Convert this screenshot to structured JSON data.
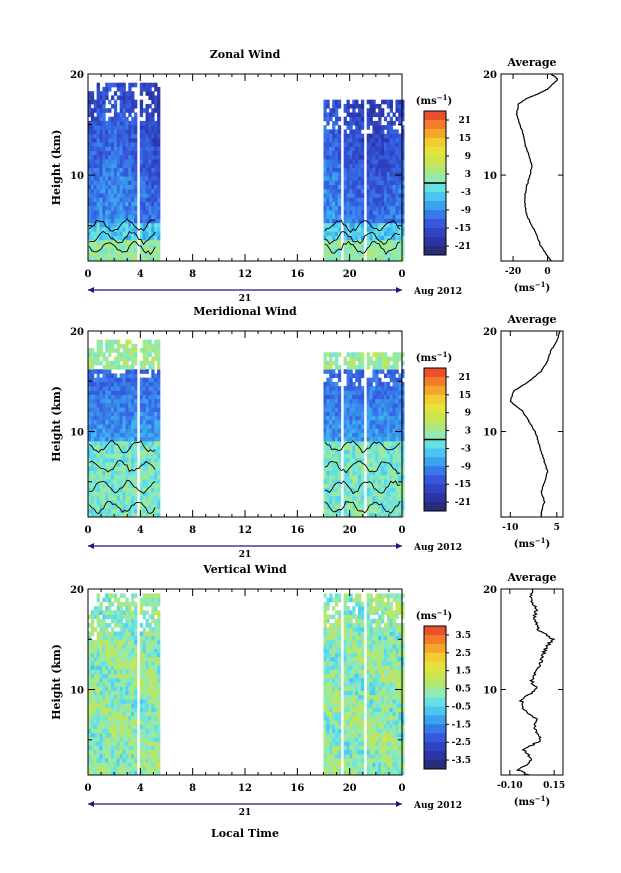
{
  "figure": {
    "date_label": "Aug 2012",
    "day_label": "21",
    "x_axis_title": "Local Time",
    "y_axis_title": "Height (km)",
    "average_title": "Average",
    "unit_label": "(ms⁻¹)",
    "unit_base": "(ms",
    "unit_exp": "−1",
    "unit_close": ")"
  },
  "chart_data": [
    {
      "type": "heatmap",
      "title": "Zonal Wind",
      "xlabel": "",
      "ylabel": "Height (km)",
      "xlim": [
        0,
        24
      ],
      "ylim": [
        1.5,
        20
      ],
      "x_ticks": [
        "0",
        "4",
        "8",
        "12",
        "16",
        "20",
        "0"
      ],
      "y_ticks": [
        "10",
        "20"
      ],
      "data_columns": [
        [
          0,
          5.3
        ],
        [
          18.0,
          24
        ]
      ],
      "colorbar": {
        "unit": "(ms⁻¹)",
        "range": [
          -24,
          24
        ],
        "ticks": [
          "21",
          "15",
          "9",
          "3",
          "-3",
          "-9",
          "-15",
          "-21"
        ],
        "zero_line": 0
      },
      "profile": {
        "title": "Average",
        "xlabel": "(ms⁻¹)",
        "xlim": [
          -27,
          9
        ],
        "x_ticks": [
          "-20",
          "0"
        ],
        "height_km": [
          1.5,
          2,
          3,
          4,
          5,
          6,
          7,
          8,
          9,
          10,
          11,
          12,
          13,
          14,
          15,
          16,
          17,
          17.5,
          18,
          18.5,
          19,
          19.5,
          20
        ],
        "values": [
          2,
          0,
          -4,
          -6,
          -9,
          -12,
          -13,
          -13,
          -12,
          -10,
          -9,
          -11,
          -13,
          -14,
          -16,
          -18,
          -17,
          -13,
          -6,
          0,
          3,
          6,
          2
        ]
      }
    },
    {
      "type": "heatmap",
      "title": "Meridional Wind",
      "xlabel": "",
      "ylabel": "Height (km)",
      "xlim": [
        0,
        24
      ],
      "ylim": [
        1.5,
        20
      ],
      "x_ticks": [
        "0",
        "4",
        "8",
        "12",
        "16",
        "20",
        "0"
      ],
      "y_ticks": [
        "10",
        "20"
      ],
      "data_columns": [
        [
          0,
          5.3
        ],
        [
          18.0,
          24
        ]
      ],
      "colorbar": {
        "unit": "(ms⁻¹)",
        "range": [
          -24,
          24
        ],
        "ticks": [
          "21",
          "15",
          "9",
          "3",
          "-3",
          "-9",
          "-15",
          "-21"
        ],
        "zero_line": 0
      },
      "profile": {
        "title": "Average",
        "xlabel": "(ms⁻¹)",
        "xlim": [
          -13,
          7
        ],
        "x_ticks": [
          "-10",
          "5"
        ],
        "height_km": [
          1.5,
          2,
          3,
          4,
          5,
          6,
          7,
          8,
          9,
          10,
          11,
          12,
          13,
          14,
          15,
          16,
          17,
          18,
          19,
          20
        ],
        "values": [
          0,
          0,
          1,
          0,
          1,
          2,
          1,
          0,
          -1,
          -2,
          -4,
          -6,
          -10,
          -9,
          -4,
          0,
          2,
          3,
          5,
          6
        ]
      }
    },
    {
      "type": "heatmap",
      "title": "Vertical Wind",
      "xlabel": "Local Time",
      "ylabel": "Height (km)",
      "xlim": [
        0,
        24
      ],
      "ylim": [
        1.5,
        20
      ],
      "x_ticks": [
        "0",
        "4",
        "8",
        "12",
        "16",
        "20",
        "0"
      ],
      "y_ticks": [
        "10",
        "20"
      ],
      "data_columns": [
        [
          0,
          5.3
        ],
        [
          18.0,
          24
        ]
      ],
      "colorbar": {
        "unit": "(ms⁻¹)",
        "range": [
          -4,
          4
        ],
        "ticks": [
          "3.5",
          "2.5",
          "1.5",
          "0.5",
          "-0.5",
          "-1.5",
          "-2.5",
          "-3.5"
        ],
        "zero_line": null
      },
      "profile": {
        "title": "Average",
        "xlabel": "(ms⁻¹)",
        "xlim": [
          -0.15,
          0.2
        ],
        "x_ticks": [
          "-0.10",
          "0.15"
        ],
        "height_km": [
          1.5,
          2,
          3,
          4,
          5,
          6,
          7,
          8,
          9,
          10,
          11,
          12,
          13,
          14,
          15,
          16,
          17,
          18,
          19,
          20
        ],
        "values": [
          0.0,
          -0.05,
          0.03,
          -0.02,
          0.08,
          0.04,
          0.05,
          -0.02,
          -0.04,
          0.05,
          0.02,
          0.06,
          0.08,
          0.1,
          0.14,
          0.06,
          0.04,
          0.05,
          0.02,
          0.03
        ]
      }
    }
  ]
}
